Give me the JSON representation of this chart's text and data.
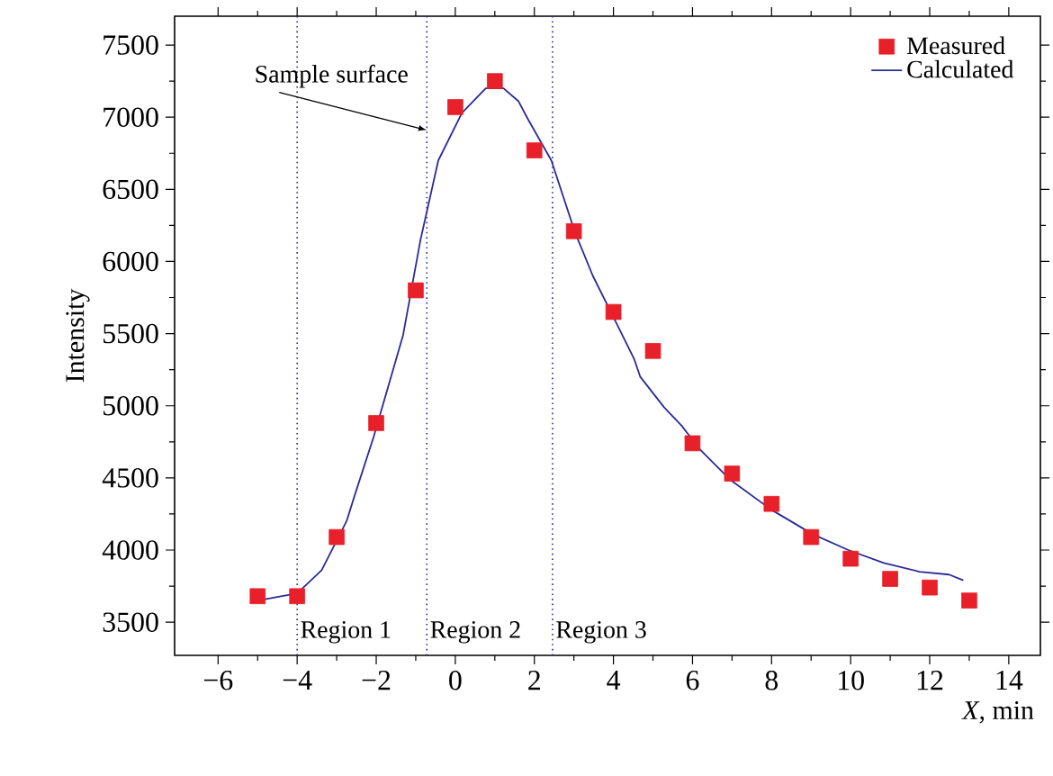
{
  "chart_data": {
    "type": "scatter",
    "xlabel": "*X*, min",
    "ylabel": "Intensity",
    "xlim": [
      -7.1,
      14.8
    ],
    "ylim": [
      3270,
      7700
    ],
    "xticks": [
      {
        "value": -6,
        "label": "−6"
      },
      {
        "value": -4,
        "label": "−4"
      },
      {
        "value": -2,
        "label": "−2"
      },
      0,
      2,
      4,
      6,
      8,
      10,
      12,
      14
    ],
    "yticks": [
      3500,
      4000,
      4500,
      5000,
      5500,
      6000,
      6500,
      7000,
      7500
    ],
    "legend": "top right",
    "grid": false,
    "series": [
      {
        "name": "Measured",
        "type": "scatter",
        "marker": "square",
        "color": "#e8202a",
        "x": [
          -5,
          -4,
          -3,
          -2,
          -1,
          0,
          1,
          2,
          3,
          4,
          5,
          6,
          7,
          8,
          9,
          10,
          11,
          12,
          13
        ],
        "values": [
          3680,
          3680,
          4090,
          4880,
          5800,
          7070,
          7250,
          6770,
          6210,
          5650,
          5380,
          4740,
          4530,
          4320,
          4090,
          3940,
          3800,
          3740,
          3650
        ]
      },
      {
        "name": "Calculated",
        "type": "line",
        "line_style": "solid",
        "color": "#2a2a9a",
        "x": [
          -5,
          -4,
          -3.38,
          -2.75,
          -2.52,
          -2.07,
          -1.32,
          -0.88,
          -0.43,
          0.17,
          0.77,
          1.22,
          1.6,
          1.83,
          2.43,
          3.03,
          3.48,
          4.08,
          4.53,
          4.68,
          5.28,
          5.73,
          6.18,
          6.94,
          7.99,
          9.04,
          9.94,
          10.84,
          11.74,
          12.49,
          12.85
        ],
        "values": [
          3650,
          3700,
          3860,
          4200,
          4400,
          4780,
          5490,
          6150,
          6700,
          7030,
          7200,
          7200,
          7110,
          6990,
          6700,
          6200,
          5900,
          5570,
          5320,
          5200,
          4990,
          4860,
          4700,
          4490,
          4280,
          4110,
          4000,
          3910,
          3850,
          3830,
          3790
        ]
      }
    ],
    "ref_lines": [
      {
        "axis": "x",
        "value": -4,
        "color": "#2a2a9a",
        "line_style": "dotted"
      },
      {
        "axis": "x",
        "value": -0.72,
        "color": "#2a2a9a",
        "line_style": "dotted"
      },
      {
        "axis": "x",
        "value": 2.46,
        "color": "#2a2a9a",
        "line_style": "dotted"
      }
    ],
    "annotations": [
      {
        "text": "Sample surface",
        "x": -0.72,
        "y": 6910
      },
      {
        "text": "Region 1",
        "x": -4,
        "y": 3430
      },
      {
        "text": "Region 2",
        "x": -0.72,
        "y": 3430
      },
      {
        "text": "Region 3",
        "x": 2.46,
        "y": 3430
      }
    ]
  }
}
